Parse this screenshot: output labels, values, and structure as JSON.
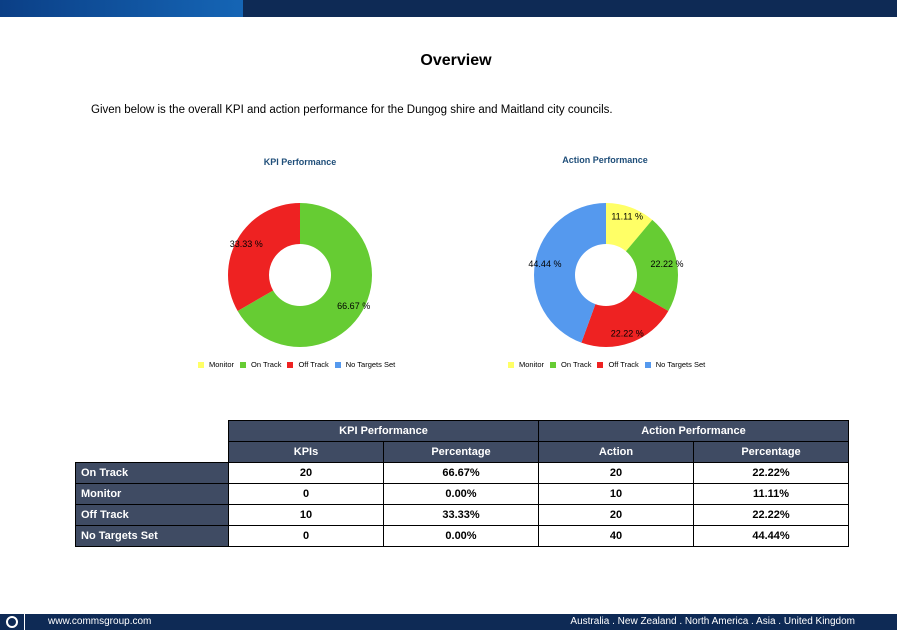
{
  "page": {
    "title": "Overview",
    "intro": "Given below is the overall KPI and action performance for the Dungog shire and Maitland city councils."
  },
  "chart_data": [
    {
      "type": "pie",
      "title": "KPI Performance",
      "categories": [
        "Monitor",
        "On Track",
        "Off Track",
        "No Targets Set"
      ],
      "values": [
        0,
        66.67,
        33.33,
        0
      ],
      "labels": [
        "",
        "66.67 %",
        "33.33 %",
        ""
      ],
      "colors": [
        "#ffff66",
        "#66cc33",
        "#ee2222",
        "#5599ee"
      ],
      "legend_position": "bottom"
    },
    {
      "type": "pie",
      "title": "Action Performance",
      "categories": [
        "Monitor",
        "On Track",
        "Off Track",
        "No Targets Set"
      ],
      "values": [
        11.11,
        22.22,
        22.22,
        44.44
      ],
      "labels": [
        "11.11 %",
        "22.22 %",
        "22.22 %",
        "44.44 %"
      ],
      "colors": [
        "#ffff66",
        "#66cc33",
        "#ee2222",
        "#5599ee"
      ],
      "legend_position": "bottom"
    }
  ],
  "table": {
    "group_headers": [
      "KPI Performance",
      "Action Performance"
    ],
    "sub_headers": [
      "KPIs",
      "Percentage",
      "Action",
      "Percentage"
    ],
    "rows": [
      {
        "label": "On Track",
        "cells": [
          "20",
          "66.67%",
          "20",
          "22.22%"
        ]
      },
      {
        "label": "Monitor",
        "cells": [
          "0",
          "0.00%",
          "10",
          "11.11%"
        ]
      },
      {
        "label": "Off Track",
        "cells": [
          "10",
          "33.33%",
          "20",
          "22.22%"
        ]
      },
      {
        "label": "No Targets Set",
        "cells": [
          "0",
          "0.00%",
          "40",
          "44.44%"
        ]
      }
    ]
  },
  "footer": {
    "url": "www.commsgroup.com",
    "regions": "Australia . New Zealand . North America . Asia . United Kingdom"
  }
}
